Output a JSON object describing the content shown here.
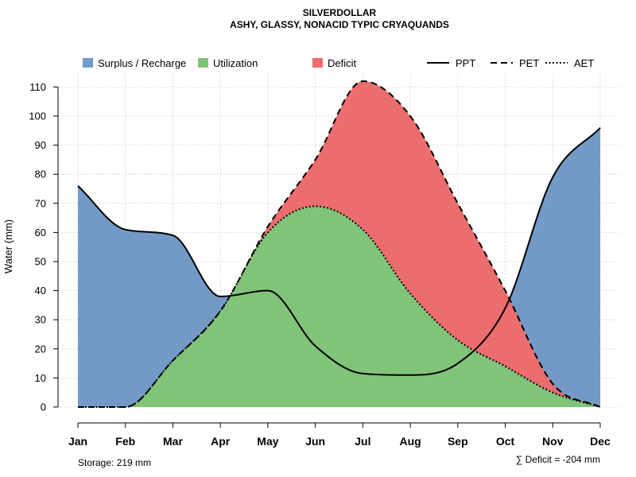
{
  "chart_data": {
    "type": "area",
    "title": "SILVERDOLLAR",
    "subtitle": "ASHY, GLASSY, NONACID TYPIC CRYAQUANDS",
    "ylabel": "Water (mm)",
    "xlabel": "",
    "ylim": [
      0,
      115
    ],
    "y_ticks": [
      0,
      10,
      20,
      30,
      40,
      50,
      60,
      70,
      80,
      90,
      100,
      110
    ],
    "grid": true,
    "categories": [
      "Jan",
      "Feb",
      "Mar",
      "Apr",
      "May",
      "Jun",
      "Jul",
      "Aug",
      "Sep",
      "Oct",
      "Nov",
      "Dec"
    ],
    "series": [
      {
        "name": "PPT",
        "line_style": "solid",
        "values": [
          76,
          61,
          59,
          38,
          40,
          21,
          11.5,
          11,
          15,
          34,
          79,
          96
        ]
      },
      {
        "name": "PET",
        "line_style": "dashed",
        "values": [
          0,
          0,
          16,
          33,
          62,
          85,
          112,
          100,
          70,
          40,
          8,
          0
        ]
      },
      {
        "name": "AET",
        "line_style": "dotted",
        "values": [
          0,
          0,
          16,
          33,
          60,
          69,
          61,
          39,
          23,
          14,
          5,
          0
        ]
      }
    ],
    "legend": {
      "position": "top",
      "entries": [
        {
          "label": "Surplus / Recharge",
          "color": "#7399c6",
          "kind": "fill"
        },
        {
          "label": "Utilization",
          "color": "#80c47a",
          "kind": "fill"
        },
        {
          "label": "Deficit",
          "color": "#ec6d6e",
          "kind": "fill"
        },
        {
          "label": "PPT",
          "kind": "solid"
        },
        {
          "label": "PET",
          "kind": "dashed"
        },
        {
          "label": "AET",
          "kind": "dotted"
        }
      ]
    },
    "annotations": {
      "storage": "Storage: 219 mm",
      "deficit": "∑ Deficit = -204 mm"
    }
  }
}
